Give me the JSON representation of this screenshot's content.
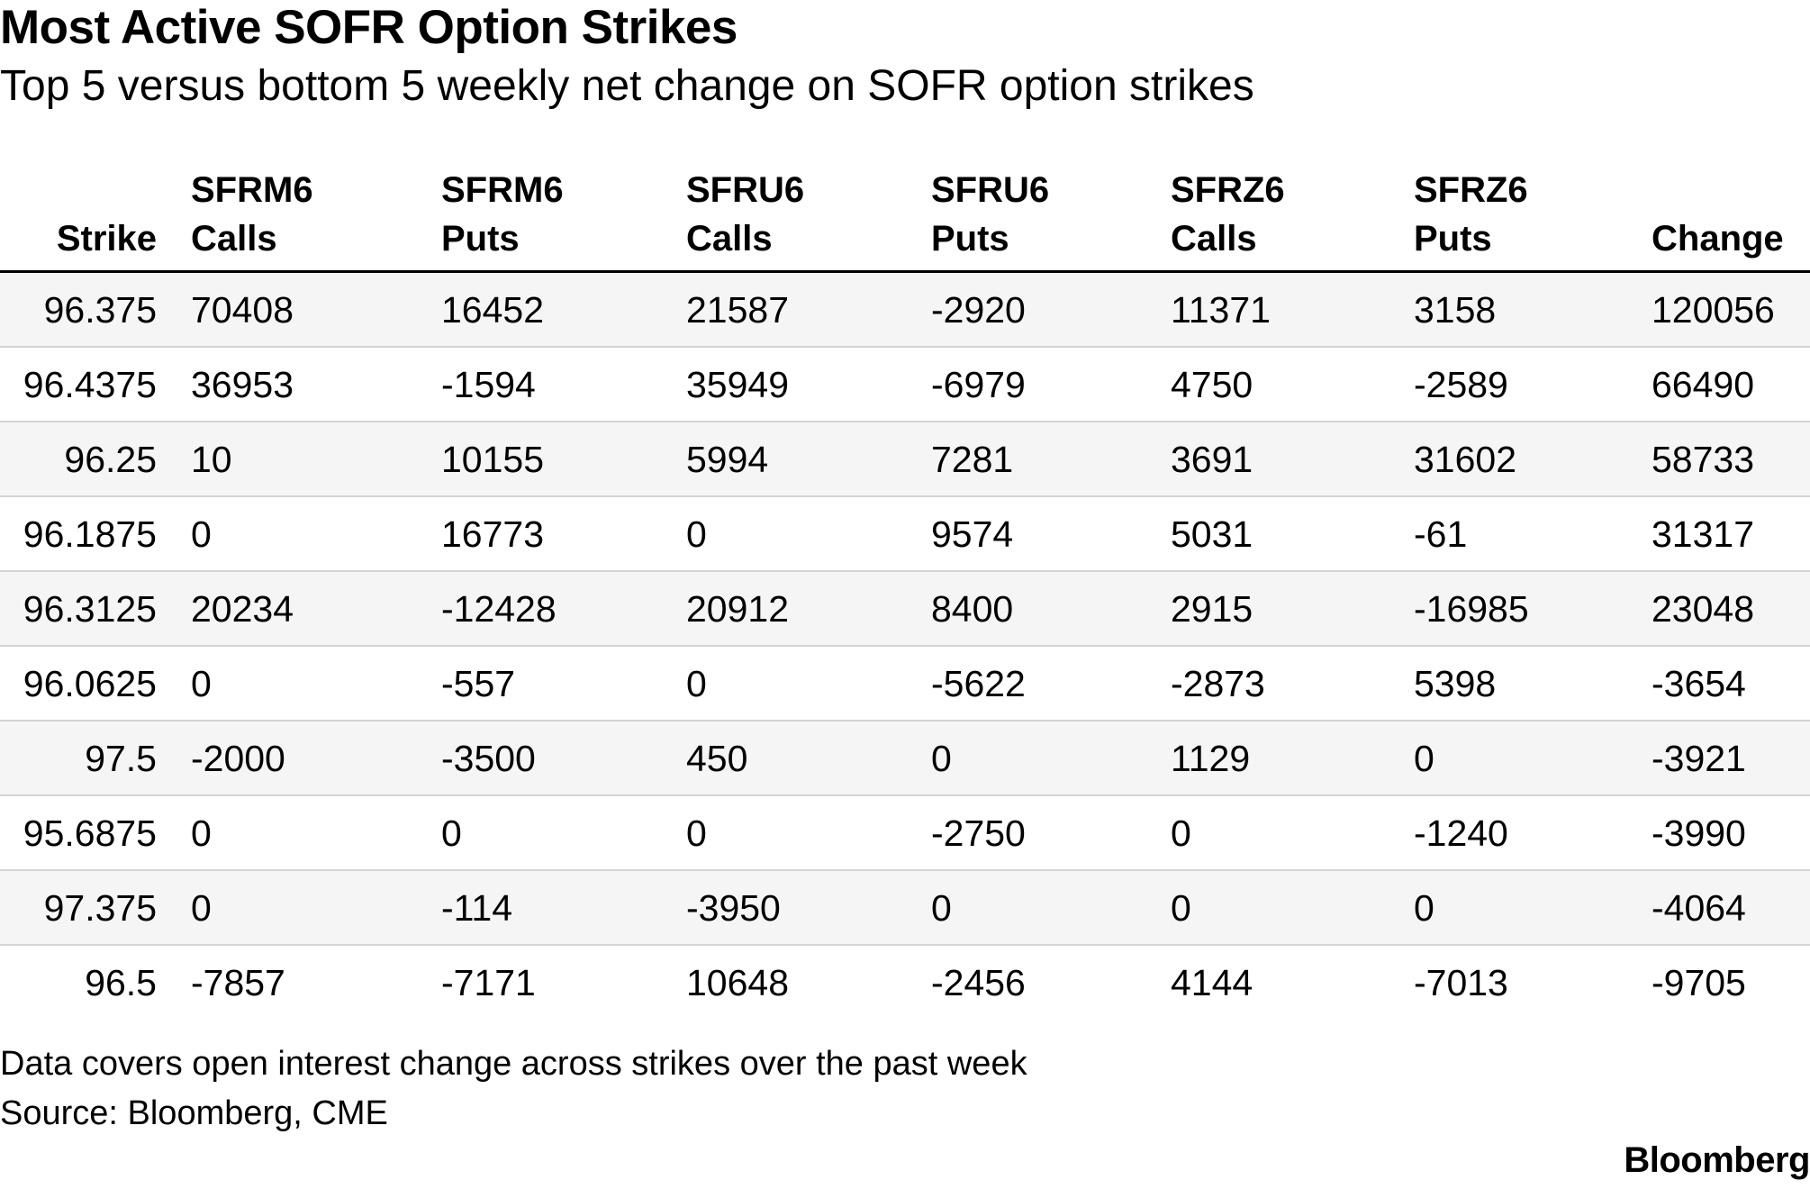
{
  "chart_data": {
    "type": "table",
    "title": "Most Active SOFR Option Strikes",
    "subtitle": "Top 5 versus bottom 5 weekly net change on SOFR option strikes",
    "columns": [
      {
        "line1": "",
        "line2": "Strike"
      },
      {
        "line1": "SFRM6",
        "line2": "Calls"
      },
      {
        "line1": "SFRM6",
        "line2": "Puts"
      },
      {
        "line1": "SFRU6",
        "line2": "Calls"
      },
      {
        "line1": "SFRU6",
        "line2": "Puts"
      },
      {
        "line1": "SFRZ6",
        "line2": "Calls"
      },
      {
        "line1": "SFRZ6",
        "line2": "Puts"
      },
      {
        "line1": "",
        "line2": "Change"
      }
    ],
    "rows": [
      [
        "96.375",
        "70408",
        "16452",
        "21587",
        "-2920",
        "11371",
        "3158",
        "120056"
      ],
      [
        "96.4375",
        "36953",
        "-1594",
        "35949",
        "-6979",
        "4750",
        "-2589",
        "66490"
      ],
      [
        "96.25",
        "10",
        "10155",
        "5994",
        "7281",
        "3691",
        "31602",
        "58733"
      ],
      [
        "96.1875",
        "0",
        "16773",
        "0",
        "9574",
        "5031",
        "-61",
        "31317"
      ],
      [
        "96.3125",
        "20234",
        "-12428",
        "20912",
        "8400",
        "2915",
        "-16985",
        "23048"
      ],
      [
        "96.0625",
        "0",
        "-557",
        "0",
        "-5622",
        "-2873",
        "5398",
        "-3654"
      ],
      [
        "97.5",
        "-2000",
        "-3500",
        "450",
        "0",
        "1129",
        "0",
        "-3921"
      ],
      [
        "95.6875",
        "0",
        "0",
        "0",
        "-2750",
        "0",
        "-1240",
        "-3990"
      ],
      [
        "97.375",
        "0",
        "-114",
        "-3950",
        "0",
        "0",
        "0",
        "-4064"
      ],
      [
        "96.5",
        "-7857",
        "-7171",
        "10648",
        "-2456",
        "4144",
        "-7013",
        "-9705"
      ]
    ],
    "note": "Data covers open interest change across strikes over the past week",
    "source": "Source: Bloomberg, CME"
  },
  "branding": {
    "logo_text": "Bloomberg"
  },
  "colors": {
    "row_shade": "#f5f5f5",
    "row_divider": "#d4d4d4",
    "header_rule": "#000000"
  }
}
